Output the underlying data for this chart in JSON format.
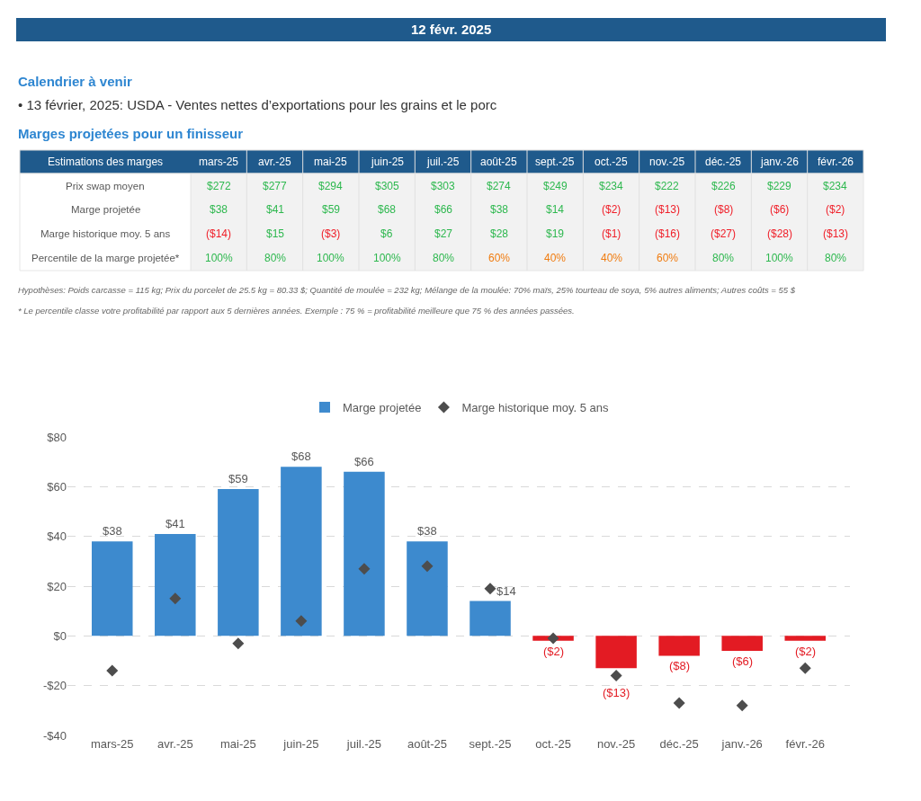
{
  "chart_data": [
    {
      "type": "heatmap",
      "title": "12 févr. 2025",
      "subtitle": "Marges projetées pour un finisseur",
      "ylabel": "Estimations des marges",
      "annotations": [
        "Calendrier à venir",
        "• 13 février, 2025: USDA - Ventes nettes d’exportations pour les grains et le porc",
        "Hypothèses: Poids carcasse = 115 kg; Prix du porcelet de 25.5 kg = 80.33 $; Quantité de moulée = 232 kg; Mélange de la moulée: 70% maïs, 25% tourteau de soya, 5% autres aliments; Autres coûts = 55 $",
        "* Le percentile classe votre profitabilité par rapport aux 5 dernières années. Exemple : 75 % = profitabilité meilleure que 75 % des années passées."
      ],
      "categories": [
        "mars-25",
        "avr.-25",
        "mai-25",
        "juin-25",
        "juil.-25",
        "août-25",
        "sept.-25",
        "oct.-25",
        "nov.-25",
        "déc.-25",
        "janv.-26",
        "févr.-26"
      ],
      "y_categories": [
        "Prix swap moyen",
        "Marge projetée",
        "Marge historique moy. 5 ans",
        "Percentile de la marge projetée*"
      ],
      "cells": [
        [
          272,
          277,
          294,
          305,
          303,
          274,
          249,
          234,
          222,
          226,
          229,
          234
        ],
        [
          38,
          41,
          59,
          68,
          66,
          38,
          14,
          -2,
          -13,
          -8,
          -6,
          -2
        ],
        [
          -14,
          15,
          -3,
          6,
          27,
          28,
          19,
          -1,
          -16,
          -27,
          -28,
          -13
        ],
        [
          100,
          80,
          100,
          100,
          80,
          60,
          40,
          40,
          60,
          80,
          100,
          80
        ]
      ],
      "cell_labels": [
        [
          "$272",
          "$277",
          "$294",
          "$305",
          "$303",
          "$274",
          "$249",
          "$234",
          "$222",
          "$226",
          "$229",
          "$234"
        ],
        [
          "$38",
          "$41",
          "$59",
          "$68",
          "$66",
          "$38",
          "$14",
          "($2)",
          "($13)",
          "($8)",
          "($6)",
          "($2)"
        ],
        [
          "($14)",
          "$15",
          "($3)",
          "$6",
          "$27",
          "$28",
          "$19",
          "($1)",
          "($16)",
          "($27)",
          "($28)",
          "($13)"
        ],
        [
          "100%",
          "80%",
          "100%",
          "100%",
          "80%",
          "60%",
          "40%",
          "40%",
          "60%",
          "80%",
          "100%",
          "80%"
        ]
      ],
      "colors": [
        [
          "#2eb84f",
          "#2eb84f",
          "#2eb84f",
          "#2eb84f",
          "#2eb84f",
          "#2eb84f",
          "#2eb84f",
          "#2eb84f",
          "#2eb84f",
          "#2eb84f",
          "#2eb84f",
          "#2eb84f"
        ],
        [
          "#2eb84f",
          "#2eb84f",
          "#2eb84f",
          "#2eb84f",
          "#2eb84f",
          "#2eb84f",
          "#2eb84f",
          "#f0202a",
          "#f0202a",
          "#f0202a",
          "#f0202a",
          "#f0202a"
        ],
        [
          "#f0202a",
          "#2eb84f",
          "#f0202a",
          "#2eb84f",
          "#2eb84f",
          "#2eb84f",
          "#2eb84f",
          "#f0202a",
          "#f0202a",
          "#f0202a",
          "#f0202a",
          "#f0202a"
        ],
        [
          "#2eb84f",
          "#2eb84f",
          "#2eb84f",
          "#2eb84f",
          "#2eb84f",
          "#f07c10",
          "#f07c10",
          "#f07c10",
          "#f07c10",
          "#2eb84f",
          "#2eb84f",
          "#2eb84f"
        ]
      ]
    },
    {
      "type": "bar",
      "categories": [
        "mars-25",
        "avr.-25",
        "mai-25",
        "juin-25",
        "juil.-25",
        "août-25",
        "sept.-25",
        "oct.-25",
        "nov.-25",
        "déc.-25",
        "janv.-26",
        "févr.-26"
      ],
      "series": [
        {
          "name": "Marge projetée",
          "type": "bar",
          "values": [
            38,
            41,
            59,
            68,
            66,
            38,
            14,
            -2,
            -13,
            -8,
            -6,
            -2
          ],
          "value_labels": [
            "$38",
            "$41",
            "$59",
            "$68",
            "$66",
            "$38",
            "$14",
            "($2)",
            "($13)",
            "($8)",
            "($6)",
            "($2)"
          ],
          "colors": [
            "#3d8ace",
            "#3d8ace",
            "#3d8ace",
            "#3d8ace",
            "#3d8ace",
            "#3d8ace",
            "#3d8ace",
            "#e31b23",
            "#e31b23",
            "#e31b23",
            "#e31b23",
            "#e31b23"
          ]
        },
        {
          "name": "Marge historique moy. 5 ans",
          "type": "scatter",
          "marker": "diamond",
          "color": "#4d4d4d",
          "values": [
            -14,
            15,
            -3,
            6,
            27,
            28,
            19,
            -1,
            -16,
            -27,
            -28,
            -13
          ]
        }
      ],
      "ylim": [
        -40,
        80
      ],
      "yticks": [
        {
          "value": -40,
          "label": "-$40"
        },
        {
          "value": -20,
          "label": "-$20"
        },
        {
          "value": 0,
          "label": "$0"
        },
        {
          "value": 20,
          "label": "$20"
        },
        {
          "value": 40,
          "label": "$40"
        },
        {
          "value": 60,
          "label": "$60"
        },
        {
          "value": 80,
          "label": "$80"
        }
      ],
      "grid": "y",
      "legend": "top"
    }
  ]
}
